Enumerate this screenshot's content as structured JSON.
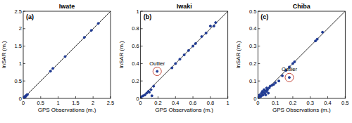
{
  "chart_data": [
    {
      "type": "scatter",
      "title": "Iwate",
      "panel": "(a)",
      "x_label": "GPS Observations (m.)",
      "y_label": "InSAR (m.)",
      "x": [
        0.02,
        0.04,
        0.05,
        0.06,
        0.08,
        0.1,
        0.12,
        0.78,
        0.85,
        1.2,
        1.75,
        1.95,
        2.15
      ],
      "values": [
        0.03,
        0.05,
        0.02,
        0.06,
        0.07,
        0.1,
        0.11,
        0.78,
        0.86,
        1.2,
        1.75,
        1.95,
        2.15
      ],
      "xlim": [
        0,
        2.5
      ],
      "ylim": [
        0,
        2.5
      ],
      "xticks": [
        0,
        0.5,
        1,
        1.5,
        2,
        2.5
      ],
      "yticks": [
        0,
        0.5,
        1,
        1.5,
        2,
        2.5
      ],
      "color": "#1f3a93",
      "marker": "circle",
      "grid": false
    },
    {
      "type": "scatter",
      "title": "Iwaki",
      "panel": "(b)",
      "x_label": "GPS Observations (m.)",
      "y_label": "InSAR (m.)",
      "x": [
        0.01,
        0.03,
        0.05,
        0.07,
        0.09,
        0.1,
        0.12,
        0.13,
        0.15,
        0.19,
        0.36,
        0.4,
        0.45,
        0.5,
        0.55,
        0.6,
        0.63,
        0.7,
        0.75,
        0.8,
        0.84,
        0.86
      ],
      "values": [
        0.02,
        0.03,
        0.04,
        0.06,
        0.08,
        0.07,
        0.1,
        0.03,
        0.14,
        0.31,
        0.35,
        0.4,
        0.45,
        0.5,
        0.55,
        0.6,
        0.63,
        0.71,
        0.75,
        0.83,
        0.83,
        0.87
      ],
      "xlim": [
        0,
        1
      ],
      "ylim": [
        0,
        1
      ],
      "xticks": [
        0,
        0.2,
        0.4,
        0.6,
        0.8,
        1
      ],
      "yticks": [
        0,
        0.2,
        0.4,
        0.6,
        0.8,
        1
      ],
      "color": "#1f3a93",
      "marker": "circle",
      "grid": false,
      "annotations": [
        {
          "text": "Outlier",
          "x": 0.19,
          "y": 0.31
        }
      ]
    },
    {
      "type": "scatter",
      "title": "Chiba",
      "panel": "(c)",
      "x_label": "GPS Observations (m.)",
      "y_label": "InSAR (m.)",
      "x": [
        0.005,
        0.01,
        0.015,
        0.02,
        0.02,
        0.025,
        0.03,
        0.03,
        0.035,
        0.04,
        0.04,
        0.045,
        0.05,
        0.05,
        0.055,
        0.06,
        0.065,
        0.07,
        0.08,
        0.09,
        0.1,
        0.12,
        0.14,
        0.16,
        0.18,
        0.18,
        0.2,
        0.21,
        0.33,
        0.34,
        0.37
      ],
      "values": [
        0.01,
        0.02,
        0.01,
        0.03,
        0.015,
        0.04,
        0.02,
        0.035,
        0.05,
        0.03,
        0.045,
        0.02,
        0.04,
        0.06,
        0.05,
        0.03,
        0.06,
        0.07,
        0.075,
        0.08,
        0.09,
        0.1,
        0.13,
        0.16,
        0.18,
        0.12,
        0.2,
        0.21,
        0.33,
        0.34,
        0.38
      ],
      "xlim": [
        0,
        0.5
      ],
      "ylim": [
        0,
        0.5
      ],
      "xticks": [
        0,
        0.1,
        0.2,
        0.3,
        0.4,
        0.5
      ],
      "yticks": [
        0,
        0.1,
        0.2,
        0.3,
        0.4,
        0.5
      ],
      "color": "#1f3a93",
      "marker": "circle",
      "grid": false,
      "annotations": [
        {
          "text": "Outlier",
          "x": 0.18,
          "y": 0.12
        }
      ]
    }
  ]
}
